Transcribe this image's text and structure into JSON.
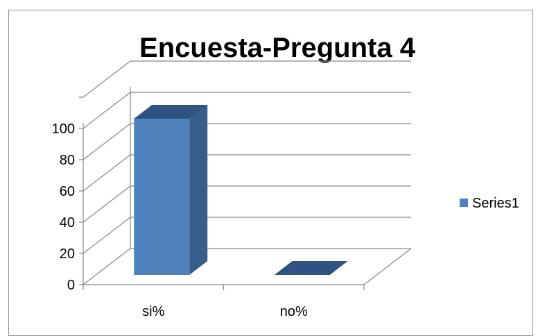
{
  "chart_data": {
    "type": "bar",
    "title": "Encuesta-Pregunta 4",
    "categories": [
      "si%",
      "no%"
    ],
    "series": [
      {
        "name": "Series1",
        "values": [
          100,
          0
        ]
      }
    ],
    "yticks": [
      "0",
      "20",
      "40",
      "60",
      "80",
      "100"
    ],
    "ylim": [
      0,
      100
    ],
    "grid": true,
    "legend": "right",
    "three_d": true,
    "colors": {
      "front": "#4f81bd",
      "side": "#385d8a",
      "top": "#2f5280",
      "grid": "#868686"
    }
  }
}
